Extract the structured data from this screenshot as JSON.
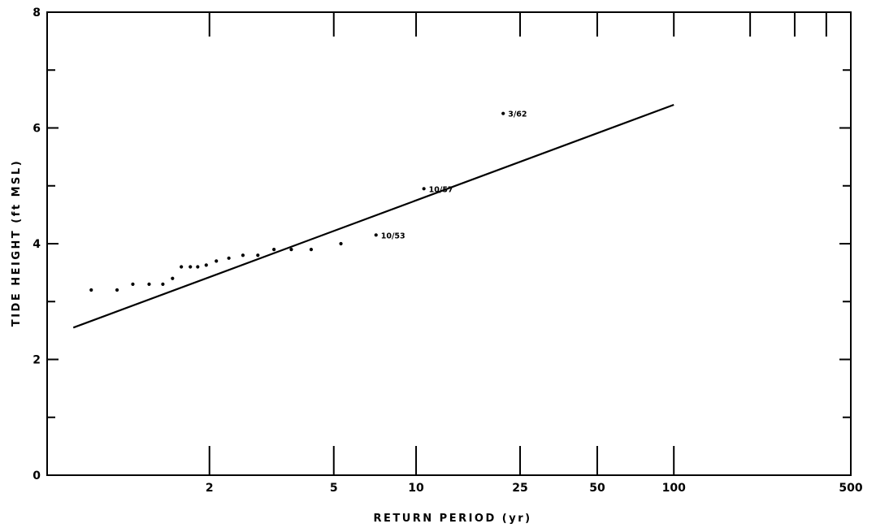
{
  "chart_data": {
    "type": "scatter",
    "title": "",
    "xlabel": "RETURN PERIOD (yr)",
    "ylabel": "TIDE HEIGHT (ft MSL)",
    "x_scale": "gumbel",
    "xlim": [
      1.05,
      500
    ],
    "ylim": [
      0,
      8
    ],
    "x_ticks": [
      2,
      5,
      10,
      25,
      50,
      100,
      500
    ],
    "x_tick_labels": [
      "2",
      "5",
      "10",
      "25",
      "50",
      "100",
      "500"
    ],
    "y_ticks": [
      0,
      2,
      4,
      6,
      8
    ],
    "y_tick_labels": [
      "0",
      "2",
      "4",
      "6",
      "8"
    ],
    "grid": false,
    "series": [
      {
        "kind": "points",
        "points": [
          {
            "x": 1.15,
            "y": 3.2
          },
          {
            "x": 1.25,
            "y": 3.2
          },
          {
            "x": 1.33,
            "y": 3.3
          },
          {
            "x": 1.43,
            "y": 3.3
          },
          {
            "x": 1.53,
            "y": 3.3
          },
          {
            "x": 1.61,
            "y": 3.4
          },
          {
            "x": 1.69,
            "y": 3.6
          },
          {
            "x": 1.78,
            "y": 3.6
          },
          {
            "x": 1.86,
            "y": 3.6
          },
          {
            "x": 1.96,
            "y": 3.63
          },
          {
            "x": 2.09,
            "y": 3.7
          },
          {
            "x": 2.27,
            "y": 3.75
          },
          {
            "x": 2.5,
            "y": 3.8
          },
          {
            "x": 2.78,
            "y": 3.8
          },
          {
            "x": 3.13,
            "y": 3.9
          },
          {
            "x": 3.57,
            "y": 3.9
          },
          {
            "x": 4.17,
            "y": 3.9
          },
          {
            "x": 5.3,
            "y": 4.0
          },
          {
            "x": 7.1,
            "y": 4.15
          },
          {
            "x": 10.7,
            "y": 4.95
          },
          {
            "x": 21.5,
            "y": 6.25
          }
        ]
      },
      {
        "kind": "line",
        "points": [
          {
            "x": 1.1,
            "y": 2.55
          },
          {
            "x": 100,
            "y": 6.4
          }
        ]
      }
    ],
    "annotations": [
      {
        "text": "10/53",
        "x": 7.1,
        "y": 4.15
      },
      {
        "text": "10/57",
        "x": 10.7,
        "y": 4.95
      },
      {
        "text": "3/62",
        "x": 21.5,
        "y": 6.25
      }
    ]
  }
}
